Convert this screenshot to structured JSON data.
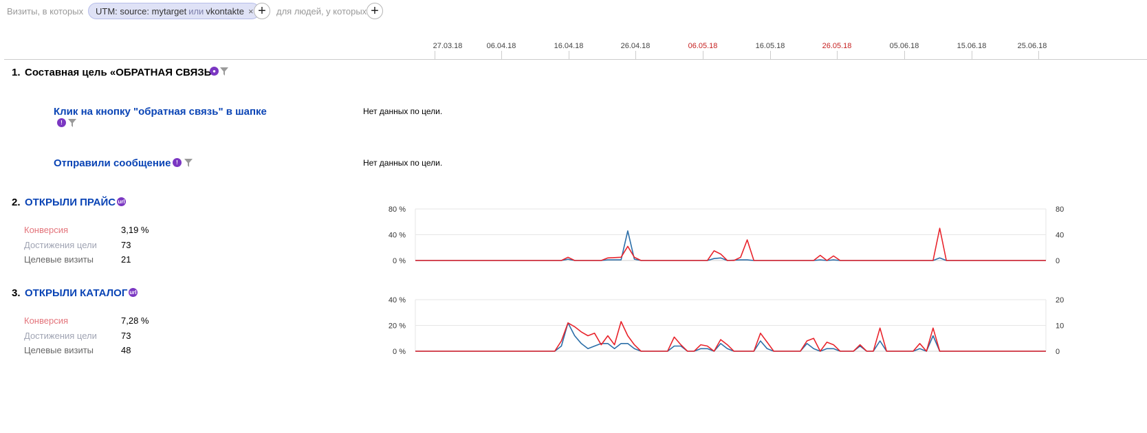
{
  "filter": {
    "visits_label": "Визиты, в которых",
    "chip_prefix": "UTM: source: mytarget",
    "chip_or": "или",
    "chip_value": "vkontakte",
    "people_label": "для людей, у которых",
    "add_symbol": "+",
    "close_symbol": "×"
  },
  "timeline": {
    "ticks": [
      {
        "label": "27.03.18",
        "holiday": false
      },
      {
        "label": "06.04.18",
        "holiday": false
      },
      {
        "label": "16.04.18",
        "holiday": false
      },
      {
        "label": "26.04.18",
        "holiday": false
      },
      {
        "label": "06.05.18",
        "holiday": true
      },
      {
        "label": "16.05.18",
        "holiday": false
      },
      {
        "label": "26.05.18",
        "holiday": true
      },
      {
        "label": "05.06.18",
        "holiday": false
      },
      {
        "label": "15.06.18",
        "holiday": false
      },
      {
        "label": "25.06.18",
        "holiday": false
      }
    ]
  },
  "goals": [
    {
      "num": "1.",
      "title": "Составная цель «ОБРАТНАЯ СВЯЗЬ»",
      "icon": "composite-goal-icon",
      "steps": [
        {
          "title": "Клик на кнопку \"обратная связь\" в шапке",
          "nodata": "Нет данных по цели."
        },
        {
          "title": "Отправили сообщение",
          "nodata": "Нет данных по цели."
        }
      ]
    },
    {
      "num": "2.",
      "title": "ОТКРЫЛИ ПРАЙС",
      "icon": "url-goal-icon",
      "icon_text": "url",
      "metrics": [
        {
          "label": "Конверсия",
          "value": "3,19 %"
        },
        {
          "label": "Достижения цели",
          "value": "73"
        },
        {
          "label": "Целевые визиты",
          "value": "21"
        }
      ]
    },
    {
      "num": "3.",
      "title": "ОТКРЫЛИ КАТАЛОГ",
      "icon": "url-goal-icon",
      "icon_text": "url",
      "metrics": [
        {
          "label": "Конверсия",
          "value": "7,28 %"
        },
        {
          "label": "Достижения цели",
          "value": "73"
        },
        {
          "label": "Целевые визиты",
          "value": "48"
        }
      ]
    }
  ],
  "colors": {
    "conversion": "#e8232b",
    "visits": "#2b6ea8",
    "link": "#0a44b5",
    "icon": "#7b37c2"
  },
  "chart_data": [
    {
      "type": "line",
      "x_start": "25.03.18",
      "x_end": "28.06.18",
      "left_axis": {
        "ticks": [
          "0 %",
          "40 %",
          "80 %"
        ],
        "ylim": [
          0,
          80
        ]
      },
      "right_axis": {
        "ticks": [
          "0",
          "40",
          "80"
        ],
        "ylim": [
          0,
          80
        ]
      },
      "grid": true,
      "series": [
        {
          "color": "#e8232b",
          "axis": "left",
          "points": [
            [
              0,
              0
            ],
            [
              22,
              0
            ],
            [
              23,
              5
            ],
            [
              24,
              0
            ],
            [
              28,
              0
            ],
            [
              29,
              4
            ],
            [
              31,
              5
            ],
            [
              32,
              22
            ],
            [
              33,
              5
            ],
            [
              34,
              0
            ],
            [
              44,
              0
            ],
            [
              45,
              15
            ],
            [
              46,
              10
            ],
            [
              47,
              0
            ],
            [
              48,
              0
            ],
            [
              49,
              5
            ],
            [
              50,
              32
            ],
            [
              51,
              0
            ],
            [
              60,
              0
            ],
            [
              61,
              8
            ],
            [
              62,
              0
            ],
            [
              63,
              7
            ],
            [
              64,
              0
            ],
            [
              78,
              0
            ],
            [
              79,
              50
            ],
            [
              80,
              0
            ],
            [
              95,
              0
            ]
          ]
        },
        {
          "color": "#2b6ea8",
          "axis": "right",
          "points": [
            [
              0,
              0
            ],
            [
              22,
              0
            ],
            [
              23,
              2
            ],
            [
              24,
              0
            ],
            [
              28,
              0
            ],
            [
              29,
              1
            ],
            [
              31,
              1
            ],
            [
              32,
              46
            ],
            [
              33,
              2
            ],
            [
              34,
              0
            ],
            [
              44,
              0
            ],
            [
              45,
              3
            ],
            [
              46,
              4
            ],
            [
              47,
              0
            ],
            [
              49,
              1
            ],
            [
              50,
              1
            ],
            [
              51,
              0
            ],
            [
              60,
              0
            ],
            [
              61,
              1
            ],
            [
              62,
              0
            ],
            [
              63,
              1
            ],
            [
              64,
              0
            ],
            [
              78,
              0
            ],
            [
              79,
              4
            ],
            [
              80,
              0
            ],
            [
              95,
              0
            ]
          ]
        }
      ]
    },
    {
      "type": "line",
      "x_start": "25.03.18",
      "x_end": "28.06.18",
      "left_axis": {
        "ticks": [
          "0 %",
          "20 %",
          "40 %"
        ],
        "ylim": [
          0,
          40
        ]
      },
      "right_axis": {
        "ticks": [
          "0",
          "10",
          "20"
        ],
        "ylim": [
          0,
          20
        ]
      },
      "grid": true,
      "series": [
        {
          "color": "#e8232b",
          "axis": "left",
          "points": [
            [
              0,
              0
            ],
            [
              21,
              0
            ],
            [
              22,
              8
            ],
            [
              23,
              22
            ],
            [
              24,
              19
            ],
            [
              25,
              15
            ],
            [
              26,
              12
            ],
            [
              27,
              14
            ],
            [
              28,
              5
            ],
            [
              29,
              12
            ],
            [
              30,
              5
            ],
            [
              31,
              23
            ],
            [
              32,
              12
            ],
            [
              33,
              5
            ],
            [
              34,
              0
            ],
            [
              38,
              0
            ],
            [
              39,
              11
            ],
            [
              40,
              5
            ],
            [
              41,
              0
            ],
            [
              42,
              0
            ],
            [
              43,
              5
            ],
            [
              44,
              4
            ],
            [
              45,
              0
            ],
            [
              46,
              9
            ],
            [
              47,
              5
            ],
            [
              48,
              0
            ],
            [
              51,
              0
            ],
            [
              52,
              14
            ],
            [
              53,
              7
            ],
            [
              54,
              0
            ],
            [
              58,
              0
            ],
            [
              59,
              8
            ],
            [
              60,
              10
            ],
            [
              61,
              0
            ],
            [
              62,
              7
            ],
            [
              63,
              5
            ],
            [
              64,
              0
            ],
            [
              66,
              0
            ],
            [
              67,
              5
            ],
            [
              68,
              0
            ],
            [
              69,
              0
            ],
            [
              70,
              18
            ],
            [
              71,
              0
            ],
            [
              75,
              0
            ],
            [
              76,
              6
            ],
            [
              77,
              0
            ],
            [
              78,
              18
            ],
            [
              79,
              0
            ],
            [
              95,
              0
            ]
          ]
        },
        {
          "color": "#2b6ea8",
          "axis": "right",
          "points": [
            [
              0,
              0
            ],
            [
              21,
              0
            ],
            [
              22,
              2
            ],
            [
              23,
              11
            ],
            [
              24,
              6
            ],
            [
              25,
              3
            ],
            [
              26,
              1
            ],
            [
              27,
              2
            ],
            [
              28,
              3
            ],
            [
              29,
              3
            ],
            [
              30,
              1
            ],
            [
              31,
              3
            ],
            [
              32,
              3
            ],
            [
              33,
              1
            ],
            [
              34,
              0
            ],
            [
              38,
              0
            ],
            [
              39,
              2
            ],
            [
              40,
              2
            ],
            [
              41,
              0
            ],
            [
              42,
              0
            ],
            [
              43,
              1
            ],
            [
              44,
              1
            ],
            [
              45,
              0
            ],
            [
              46,
              3
            ],
            [
              47,
              1
            ],
            [
              48,
              0
            ],
            [
              51,
              0
            ],
            [
              52,
              4
            ],
            [
              53,
              1
            ],
            [
              54,
              0
            ],
            [
              58,
              0
            ],
            [
              59,
              3
            ],
            [
              60,
              1
            ],
            [
              61,
              0
            ],
            [
              62,
              1
            ],
            [
              63,
              1
            ],
            [
              64,
              0
            ],
            [
              66,
              0
            ],
            [
              67,
              2
            ],
            [
              68,
              0
            ],
            [
              69,
              0
            ],
            [
              70,
              4
            ],
            [
              71,
              0
            ],
            [
              75,
              0
            ],
            [
              76,
              1
            ],
            [
              77,
              0
            ],
            [
              78,
              6
            ],
            [
              79,
              0
            ],
            [
              95,
              0
            ]
          ]
        }
      ]
    }
  ]
}
